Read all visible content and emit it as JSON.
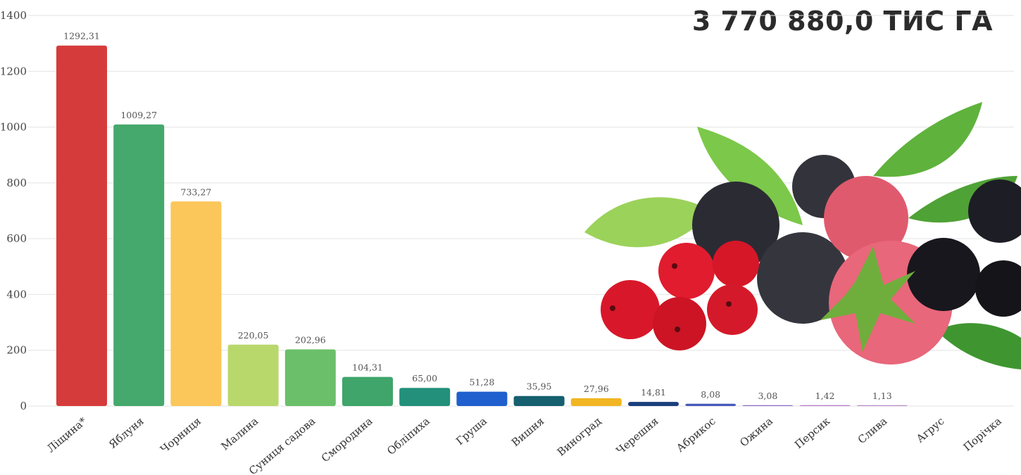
{
  "header": {
    "total": "3 770 880,0 ТИС ГА"
  },
  "chart_data": {
    "type": "bar",
    "categories": [
      "Ліщина*",
      "Яблуня",
      "Чорниця",
      "Малина",
      "Суниця садова",
      "Смородина",
      "Обліпиха",
      "Груша",
      "Вишня",
      "Виноград",
      "Черешня",
      "Абрикос",
      "Ожина",
      "Персик",
      "Слива",
      "Агрус",
      "Порічка"
    ],
    "values": [
      1292.31,
      1009.27,
      733.27,
      220.05,
      202.96,
      104.31,
      65.0,
      51.28,
      35.95,
      27.96,
      14.81,
      8.08,
      3.08,
      1.42,
      1.13,
      null,
      null
    ],
    "value_labels": [
      "1292,31",
      "1009,27",
      "733,27",
      "220,05",
      "202,96",
      "104,31",
      "65,00",
      "51,28",
      "35,95",
      "27,96",
      "14,81",
      "8,08",
      "3,08",
      "1,42",
      "1,13",
      "",
      ""
    ],
    "colors": [
      "#d63b3b",
      "#45a86d",
      "#fbc65a",
      "#b8d86c",
      "#6bbf6a",
      "#3fa56a",
      "#22907a",
      "#1f5fce",
      "#155f6e",
      "#f2b623",
      "#1a3f7c",
      "#4659b9",
      "#8a6fc2",
      "#b07ac8",
      "#b88bc9",
      "#ffffff",
      "#ffffff"
    ],
    "yticks": [
      0,
      200,
      400,
      600,
      800,
      1000,
      1200,
      1400
    ],
    "ylim": [
      0,
      1400
    ],
    "grid": true,
    "legend": "none",
    "title": "",
    "xlabel": "",
    "ylabel": ""
  },
  "image": {
    "icon": "berries-photo"
  }
}
